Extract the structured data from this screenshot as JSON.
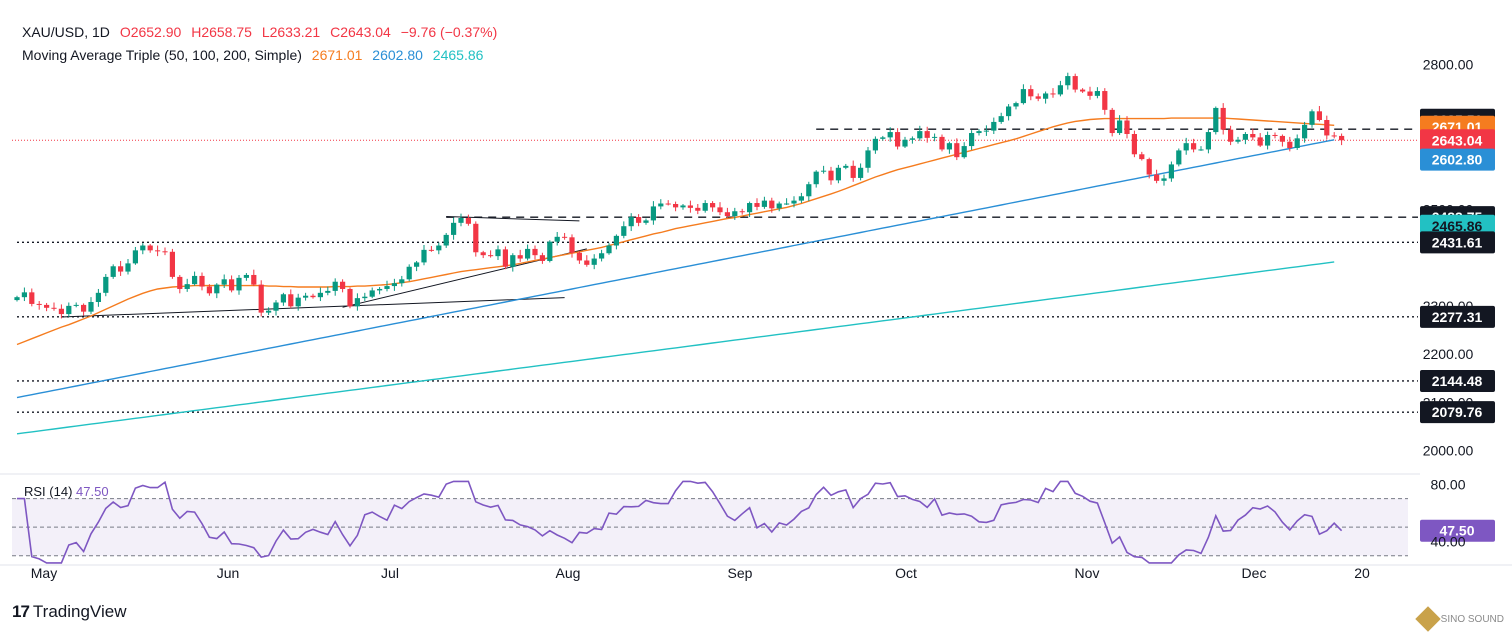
{
  "header": {
    "symbol": "XAU/USD, 1D",
    "open": "O2652.90",
    "high": "H2658.75",
    "low": "L2633.21",
    "close": "C2643.04",
    "change": "−9.76 (−0.37%)",
    "ma_title": "Moving Average Triple (50, 100, 200, Simple)",
    "ma50": "2671.01",
    "ma100": "2602.80",
    "ma200": "2465.86"
  },
  "rsi_header": {
    "title": "RSI (14)",
    "value": "47.50"
  },
  "brand": {
    "name": "TradingView",
    "watermark": "SINO SOUND"
  },
  "colors": {
    "up": "#089981",
    "down": "#f23645",
    "ma50": "#f57c1f",
    "ma100": "#2a8fd6",
    "ma200": "#22c1c3",
    "rsi": "#7e57c2"
  },
  "chart_data": {
    "type": "candlestick",
    "symbol": "XAU/USD",
    "timeframe": "1D",
    "y_axis": {
      "min": 1960,
      "max": 2830,
      "ticks": [
        "2000.00",
        "2100.00",
        "2200.00",
        "2300.00",
        "2500.00",
        "2800.00"
      ]
    },
    "x_axis": {
      "ticks": [
        "May",
        "Jun",
        "Jul",
        "Aug",
        "Sep",
        "Oct",
        "Nov",
        "Dec",
        "20"
      ]
    },
    "price_labels": [
      {
        "value": 2685.51,
        "text": "2685.51",
        "kind": "level"
      },
      {
        "value": 2671.01,
        "text": "2671.01",
        "kind": "ma50"
      },
      {
        "value": 2643.04,
        "text": "2643.04",
        "kind": "last"
      },
      {
        "value": 2602.8,
        "text": "2602.80",
        "kind": "ma100"
      },
      {
        "value": 2483.75,
        "text": "2483.75",
        "kind": "level"
      },
      {
        "value": 2465.86,
        "text": "2465.86",
        "kind": "ma200"
      },
      {
        "value": 2431.61,
        "text": "2431.61",
        "kind": "level"
      },
      {
        "value": 2277.31,
        "text": "2277.31",
        "kind": "level"
      },
      {
        "value": 2144.48,
        "text": "2144.48",
        "kind": "level"
      },
      {
        "value": 2079.76,
        "text": "2079.76",
        "kind": "level"
      }
    ],
    "horizontal_levels": [
      {
        "value": 2666,
        "style": "dashed",
        "from_index": 108
      },
      {
        "value": 2483.75,
        "style": "dashed",
        "from_index": 58
      },
      {
        "value": 2431.61,
        "style": "dotted",
        "from_index": 0
      },
      {
        "value": 2277.31,
        "style": "dotted",
        "from_index": 0
      },
      {
        "value": 2144.48,
        "style": "dotted",
        "from_index": 0
      },
      {
        "value": 2079.76,
        "style": "dotted",
        "from_index": 0
      }
    ],
    "trendlines": [
      {
        "from_index": 6,
        "from_value": 2277,
        "to_index": 74,
        "to_value": 2317
      },
      {
        "from_index": 44,
        "from_value": 2297,
        "to_index": 77,
        "to_value": 2418
      },
      {
        "from_index": 58,
        "from_value": 2485,
        "to_index": 76,
        "to_value": 2476
      }
    ],
    "closes": [
      2318,
      2328,
      2304,
      2302,
      2296,
      2294,
      2283,
      2300,
      2302,
      2288,
      2308,
      2327,
      2360,
      2382,
      2371,
      2388,
      2415,
      2425,
      2415,
      2413,
      2412,
      2360,
      2335,
      2345,
      2362,
      2340,
      2326,
      2344,
      2355,
      2332,
      2358,
      2364,
      2344,
      2286,
      2290,
      2307,
      2324,
      2299,
      2317,
      2321,
      2318,
      2327,
      2331,
      2350,
      2335,
      2299,
      2316,
      2319,
      2332,
      2335,
      2341,
      2347,
      2355,
      2381,
      2390,
      2416,
      2415,
      2425,
      2447,
      2472,
      2482,
      2470,
      2411,
      2405,
      2403,
      2417,
      2381,
      2405,
      2398,
      2418,
      2405,
      2393,
      2433,
      2443,
      2442,
      2410,
      2394,
      2385,
      2398,
      2409,
      2425,
      2445,
      2465,
      2484,
      2472,
      2477,
      2506,
      2512,
      2511,
      2504,
      2508,
      2503,
      2497,
      2513,
      2504,
      2494,
      2486,
      2496,
      2494,
      2513,
      2505,
      2518,
      2502,
      2512,
      2512,
      2518,
      2527,
      2552,
      2578,
      2580,
      2560,
      2586,
      2590,
      2565,
      2586,
      2622,
      2646,
      2649,
      2660,
      2630,
      2644,
      2647,
      2662,
      2648,
      2650,
      2624,
      2637,
      2608,
      2631,
      2658,
      2662,
      2663,
      2681,
      2693,
      2713,
      2720,
      2749,
      2734,
      2729,
      2740,
      2738,
      2757,
      2776,
      2748,
      2744,
      2735,
      2745,
      2706,
      2658,
      2684,
      2656,
      2614,
      2604,
      2572,
      2559,
      2564,
      2593,
      2622,
      2637,
      2624,
      2624,
      2660,
      2710,
      2665,
      2640,
      2644,
      2656,
      2649,
      2632,
      2654,
      2652,
      2640,
      2627,
      2647,
      2675,
      2703,
      2685,
      2653,
      2652,
      2643
    ],
    "ma50": [
      2220,
      2226,
      2232,
      2238,
      2244,
      2250,
      2256,
      2261,
      2267,
      2273,
      2279,
      2286,
      2293,
      2300,
      2307,
      2314,
      2320,
      2326,
      2331,
      2335,
      2337,
      2339,
      2340,
      2341,
      2342,
      2342,
      2342,
      2342,
      2342,
      2342,
      2342,
      2342,
      2342,
      2342,
      2341,
      2341,
      2340,
      2340,
      2339,
      2339,
      2339,
      2339,
      2339,
      2340,
      2340,
      2340,
      2341,
      2341,
      2342,
      2343,
      2344,
      2346,
      2348,
      2350,
      2353,
      2356,
      2359,
      2362,
      2365,
      2368,
      2371,
      2373,
      2375,
      2377,
      2379,
      2381,
      2383,
      2385,
      2388,
      2391,
      2394,
      2397,
      2400,
      2403,
      2406,
      2409,
      2412,
      2415,
      2418,
      2421,
      2425,
      2429,
      2433,
      2437,
      2441,
      2445,
      2449,
      2452,
      2456,
      2460,
      2463,
      2466,
      2469,
      2472,
      2475,
      2478,
      2481,
      2483,
      2486,
      2489,
      2492,
      2495,
      2498,
      2501,
      2504,
      2508,
      2512,
      2517,
      2522,
      2527,
      2532,
      2537,
      2543,
      2549,
      2555,
      2561,
      2567,
      2572,
      2577,
      2582,
      2586,
      2590,
      2594,
      2598,
      2602,
      2606,
      2610,
      2614,
      2618,
      2622,
      2626,
      2630,
      2634,
      2638,
      2642,
      2646,
      2651,
      2656,
      2661,
      2666,
      2671,
      2675,
      2679,
      2682,
      2684,
      2686,
      2687,
      2688,
      2688,
      2688,
      2688,
      2688,
      2688,
      2688,
      2688,
      2688,
      2689,
      2689,
      2689,
      2689,
      2689,
      2689,
      2689,
      2689,
      2688,
      2687,
      2686,
      2685,
      2684,
      2683,
      2682,
      2681,
      2680,
      2679,
      2678,
      2677,
      2676,
      2675,
      2674,
      2673,
      2672,
      2671.01
    ],
    "ma100": [
      2110,
      2113,
      2116,
      2119,
      2122,
      2125,
      2128,
      2131,
      2134,
      2137,
      2140,
      2143,
      2146,
      2149,
      2152,
      2155,
      2158,
      2161,
      2164,
      2167,
      2170,
      2173,
      2176,
      2179,
      2182,
      2185,
      2188,
      2191,
      2194,
      2197,
      2200,
      2203,
      2206,
      2209,
      2212,
      2215,
      2218,
      2221,
      2224,
      2227,
      2230,
      2233,
      2236,
      2239,
      2242,
      2245,
      2248,
      2251,
      2254,
      2257,
      2260,
      2263,
      2266,
      2269,
      2272,
      2275,
      2278,
      2281,
      2284,
      2287,
      2290,
      2293,
      2296,
      2299,
      2302,
      2305,
      2308,
      2311,
      2314,
      2317,
      2320,
      2323,
      2326,
      2329,
      2332,
      2335,
      2338,
      2341,
      2344,
      2347,
      2350,
      2353,
      2356,
      2359,
      2362,
      2365,
      2368,
      2371,
      2374,
      2377,
      2380,
      2383,
      2386,
      2389,
      2392,
      2395,
      2398,
      2401,
      2404,
      2407,
      2410,
      2413,
      2416,
      2419,
      2422,
      2425,
      2428,
      2431,
      2434,
      2437,
      2440,
      2443,
      2446,
      2449,
      2452,
      2455,
      2458,
      2461,
      2464,
      2467,
      2470,
      2473,
      2476,
      2479,
      2482,
      2485,
      2488,
      2491,
      2494,
      2497,
      2500,
      2503,
      2506,
      2509,
      2512,
      2515,
      2518,
      2521,
      2524,
      2527,
      2530,
      2533,
      2536,
      2539,
      2542,
      2545,
      2548,
      2551,
      2554,
      2557,
      2560,
      2563,
      2566,
      2569,
      2572,
      2575,
      2578,
      2581,
      2584,
      2587,
      2590,
      2593,
      2596,
      2599,
      2602,
      2605,
      2608,
      2611,
      2614,
      2617,
      2620,
      2623,
      2626,
      2629,
      2632,
      2635,
      2638,
      2641,
      2644,
      2647,
      2650,
      2602.8
    ],
    "ma200": [
      2035,
      2037,
      2039,
      2041,
      2043,
      2045,
      2047,
      2049,
      2051,
      2053,
      2055,
      2057,
      2059,
      2061,
      2063,
      2065,
      2067,
      2069,
      2071,
      2073,
      2075,
      2077,
      2079,
      2081,
      2083,
      2085,
      2087,
      2089,
      2091,
      2093,
      2095,
      2097,
      2099,
      2101,
      2103,
      2105,
      2107,
      2109,
      2111,
      2113,
      2115,
      2117,
      2119,
      2121,
      2123,
      2125,
      2127,
      2129,
      2131,
      2133,
      2135,
      2137,
      2139,
      2141,
      2143,
      2145,
      2147,
      2149,
      2151,
      2153,
      2155,
      2157,
      2159,
      2161,
      2163,
      2165,
      2167,
      2169,
      2171,
      2173,
      2175,
      2177,
      2179,
      2181,
      2183,
      2185,
      2187,
      2189,
      2191,
      2193,
      2195,
      2197,
      2199,
      2201,
      2203,
      2205,
      2207,
      2209,
      2211,
      2213,
      2215,
      2217,
      2219,
      2221,
      2223,
      2225,
      2227,
      2229,
      2231,
      2233,
      2235,
      2237,
      2239,
      2241,
      2243,
      2245,
      2247,
      2249,
      2251,
      2253,
      2255,
      2257,
      2259,
      2261,
      2263,
      2265,
      2267,
      2269,
      2271,
      2273,
      2275,
      2277,
      2279,
      2281,
      2283,
      2285,
      2287,
      2289,
      2291,
      2293,
      2295,
      2297,
      2299,
      2301,
      2303,
      2305,
      2307,
      2309,
      2311,
      2313,
      2315,
      2317,
      2319,
      2321,
      2323,
      2325,
      2327,
      2329,
      2331,
      2333,
      2335,
      2337,
      2339,
      2341,
      2343,
      2345,
      2347,
      2349,
      2351,
      2353,
      2355,
      2357,
      2359,
      2361,
      2363,
      2365,
      2367,
      2369,
      2371,
      2373,
      2375,
      2377,
      2379,
      2381,
      2383,
      2385,
      2387,
      2389,
      2391,
      2393,
      2395,
      2465.86
    ],
    "rsi": {
      "name": "RSI (14)",
      "last": 47.5,
      "y_axis": {
        "min": 20,
        "max": 90,
        "ticks": [
          "80.00",
          "47.50",
          "40.00"
        ]
      },
      "bands": [
        70,
        50,
        30
      ]
    }
  }
}
